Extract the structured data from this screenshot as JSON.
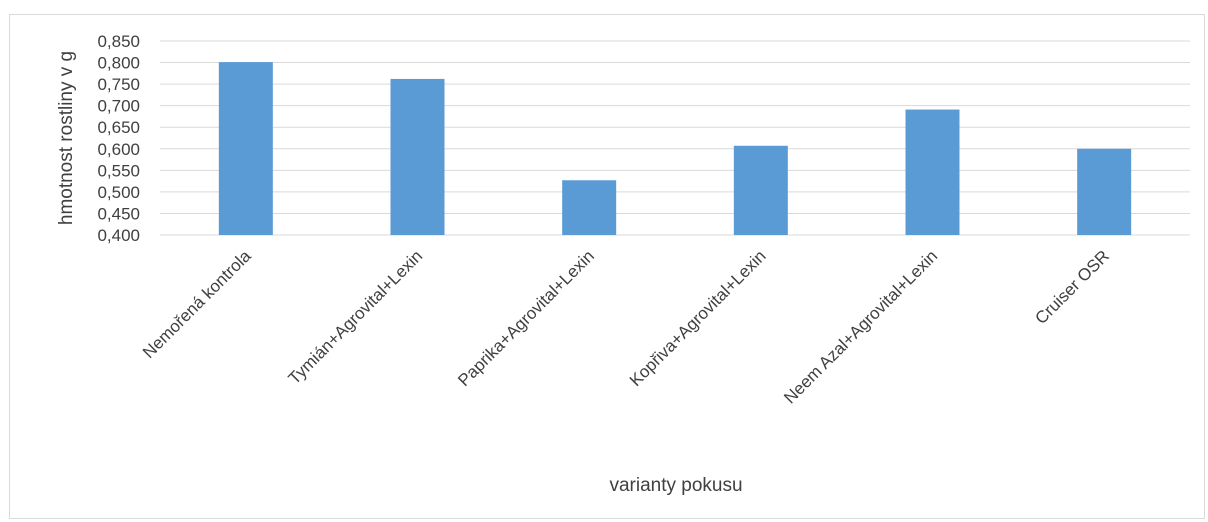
{
  "colors": {
    "bar": "#5b9bd5",
    "grid": "#d9d9d9",
    "text": "#404040"
  },
  "chart_data": {
    "type": "bar",
    "categories": [
      "Nemořená kontrola",
      "Tymián+Agrovital+Lexin",
      "Paprika+Agrovital+Lexin",
      "Kopřiva+Agrovital+Lexin",
      "Neem Azal+Agrovital+Lexin",
      "Cruiser OSR"
    ],
    "values": [
      0.801,
      0.762,
      0.527,
      0.607,
      0.691,
      0.6
    ],
    "ylim": [
      0.4,
      0.85
    ],
    "ytick_labels": [
      "0,400",
      "0,450",
      "0,500",
      "0,550",
      "0,600",
      "0,650",
      "0,700",
      "0,750",
      "0,800",
      "0,850"
    ],
    "xlabel": "varianty pokusu",
    "ylabel": "hmotnost rostliny v g",
    "grid": true,
    "legend": "none"
  }
}
